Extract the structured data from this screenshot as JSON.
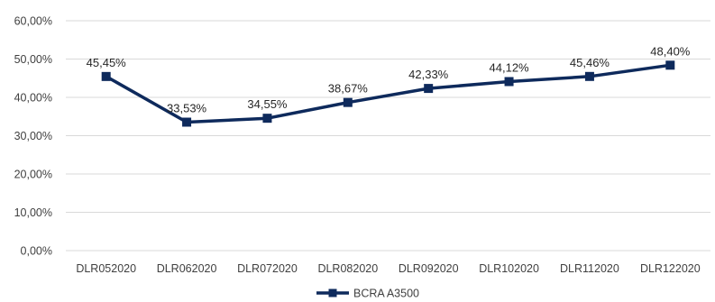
{
  "chart_data": {
    "type": "line",
    "categories": [
      "DLR052020",
      "DLR062020",
      "DLR072020",
      "DLR082020",
      "DLR092020",
      "DLR102020",
      "DLR112020",
      "DLR122020"
    ],
    "series": [
      {
        "name": "BCRA A3500",
        "values": [
          45.45,
          33.53,
          34.55,
          38.67,
          42.33,
          44.12,
          45.46,
          48.4
        ],
        "labels": [
          "45,45%",
          "33,53%",
          "34,55%",
          "38,67%",
          "42,33%",
          "44,12%",
          "45,46%",
          "48,40%"
        ],
        "color": "#0e2a5c"
      }
    ],
    "y_ticks": [
      "0,00%",
      "10,00%",
      "20,00%",
      "30,00%",
      "40,00%",
      "50,00%",
      "60,00%"
    ],
    "ylim": [
      0,
      60
    ],
    "grid": true,
    "legend": "bottom-center"
  }
}
